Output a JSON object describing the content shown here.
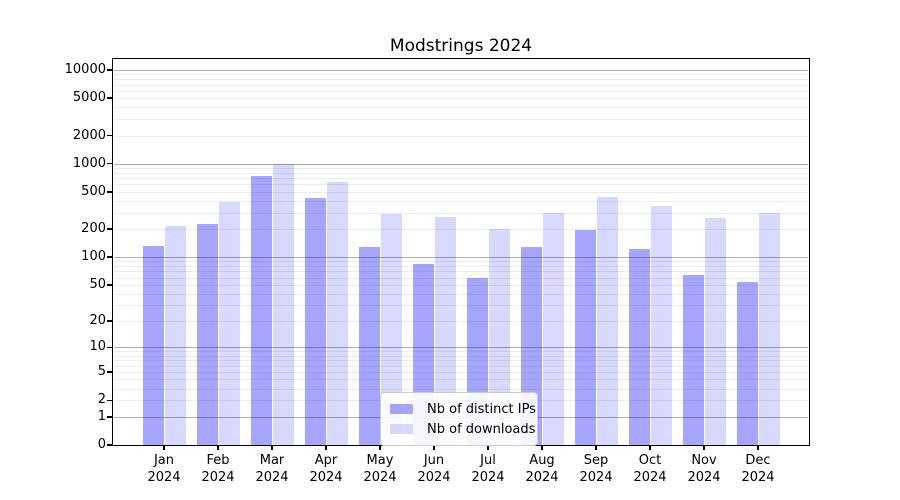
{
  "title": "Modstrings 2024",
  "chart_data": {
    "type": "bar",
    "title": "Modstrings 2024",
    "categories": [
      "Jan 2024",
      "Feb 2024",
      "Mar 2024",
      "Apr 2024",
      "May 2024",
      "Jun 2024",
      "Jul 2024",
      "Aug 2024",
      "Sep 2024",
      "Oct 2024",
      "Nov 2024",
      "Dec 2024"
    ],
    "series": [
      {
        "name": "Nb of distinct IPs",
        "color": "rgba(0,0,255,0.35)",
        "values": [
          132,
          225,
          745,
          435,
          128,
          85,
          59,
          128,
          195,
          122,
          64,
          54
        ]
      },
      {
        "name": "Nb of downloads",
        "color": "rgba(0,0,255,0.15)",
        "values": [
          215,
          390,
          1000,
          645,
          290,
          268,
          200,
          300,
          440,
          357,
          262,
          296
        ]
      }
    ],
    "xlabel": "",
    "ylabel": "",
    "yscale": "symlog ln(1+x)",
    "yticks": [
      0,
      1,
      2,
      5,
      10,
      20,
      50,
      100,
      200,
      500,
      1000,
      2000,
      5000,
      10000
    ],
    "ylim": [
      0,
      13000
    ],
    "grid": true,
    "legend_position": "lower center"
  },
  "colors": {
    "bar_dark": "rgba(0,0,255,0.35)",
    "bar_light": "rgba(0,0,255,0.15)",
    "major_grid": "#b0b0b0",
    "minor_grid": "#ececec",
    "axis": "#000000"
  }
}
